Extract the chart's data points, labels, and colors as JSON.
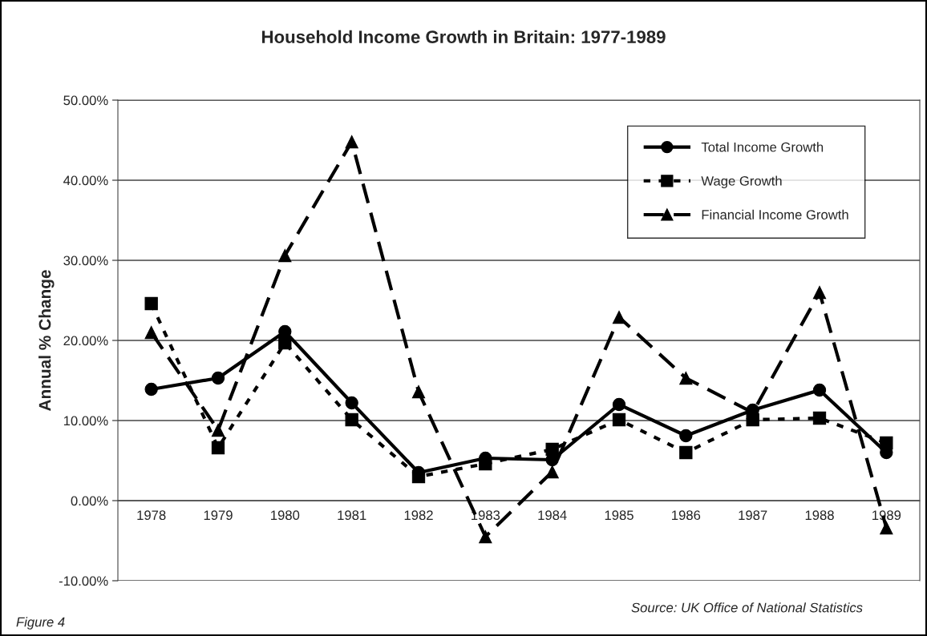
{
  "chart_data": {
    "type": "line",
    "title": "Household Income Growth in Britain: 1977-1989",
    "ylabel": "Annual % Change",
    "categories": [
      "1978",
      "1979",
      "1980",
      "1981",
      "1982",
      "1983",
      "1984",
      "1985",
      "1986",
      "1987",
      "1988",
      "1989"
    ],
    "series": [
      {
        "name": "Total Income Growth",
        "color": "#000000",
        "marker": "circle",
        "line_style": "solid",
        "values": [
          13.9,
          15.3,
          21.1,
          12.2,
          3.5,
          5.3,
          5.1,
          12.0,
          8.1,
          11.3,
          13.8,
          6.0
        ]
      },
      {
        "name": "Wage Growth",
        "color": "#000000",
        "marker": "square",
        "line_style": "dotted",
        "values": [
          24.6,
          6.6,
          19.7,
          10.1,
          3.0,
          4.6,
          6.4,
          10.1,
          6.0,
          10.1,
          10.3,
          7.2
        ]
      },
      {
        "name": "Financial Income Growth",
        "color": "#000000",
        "marker": "triangle",
        "line_style": "dashed",
        "values": [
          21.0,
          8.8,
          30.6,
          44.8,
          13.6,
          -4.5,
          3.6,
          22.9,
          15.3,
          11.0,
          26.0,
          -3.4
        ]
      }
    ],
    "ylim": [
      -10,
      50
    ],
    "yticks": [
      {
        "value": -10,
        "label": "-10.00%"
      },
      {
        "value": 0,
        "label": "0.00%"
      },
      {
        "value": 10,
        "label": "10.00%"
      },
      {
        "value": 20,
        "label": "20.00%"
      },
      {
        "value": 30,
        "label": "30.00%"
      },
      {
        "value": 40,
        "label": "40.00%"
      },
      {
        "value": 50,
        "label": "50.00%"
      }
    ],
    "grid": "y",
    "legend": "top right",
    "annotations": [
      "Source: UK Office of National Statistics",
      "Figure 4"
    ]
  }
}
